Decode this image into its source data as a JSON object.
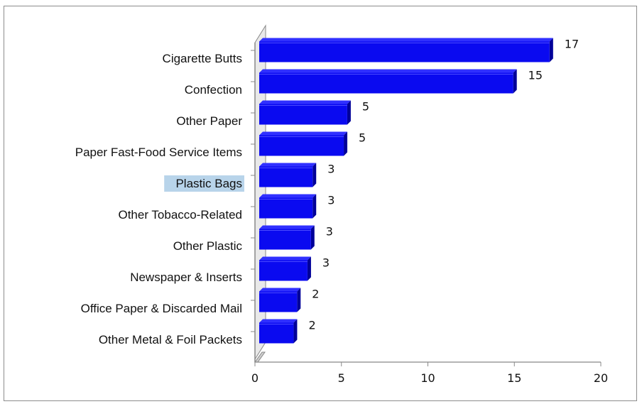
{
  "chart_data": {
    "type": "bar",
    "orientation": "horizontal",
    "categories": [
      "Cigarette Butts",
      "Confection",
      "Other Paper",
      "Paper Fast-Food Service Items",
      "Plastic Bags",
      "Other Tobacco-Related",
      "Other Plastic",
      "Newspaper & Inserts",
      "Office Paper & Discarded Mail",
      "Other Metal & Foil Packets"
    ],
    "values": [
      17,
      15,
      5,
      5,
      3,
      3,
      3,
      3,
      2,
      2
    ],
    "data_labels": [
      "17",
      "15",
      "5",
      "5",
      "3",
      "3",
      "3",
      "3",
      "2",
      "2"
    ],
    "bar_extent": [
      17.2,
      15.1,
      5.5,
      5.3,
      3.5,
      3.5,
      3.4,
      3.2,
      2.6,
      2.4
    ],
    "highlighted_category": "Plastic Bags",
    "xlim": [
      0,
      20
    ],
    "xticks": [
      0,
      5,
      10,
      15,
      20
    ],
    "xtick_labels": [
      "0",
      "5",
      "10",
      "15",
      "20"
    ],
    "title": "",
    "xlabel": "",
    "ylabel": "",
    "grid": false,
    "legend": "none",
    "colors": {
      "bar_front": "#0a0af0",
      "bar_top": "#3030ff",
      "bar_side": "#000099",
      "highlight": "#b8d4ea",
      "axis": "#888888"
    }
  }
}
